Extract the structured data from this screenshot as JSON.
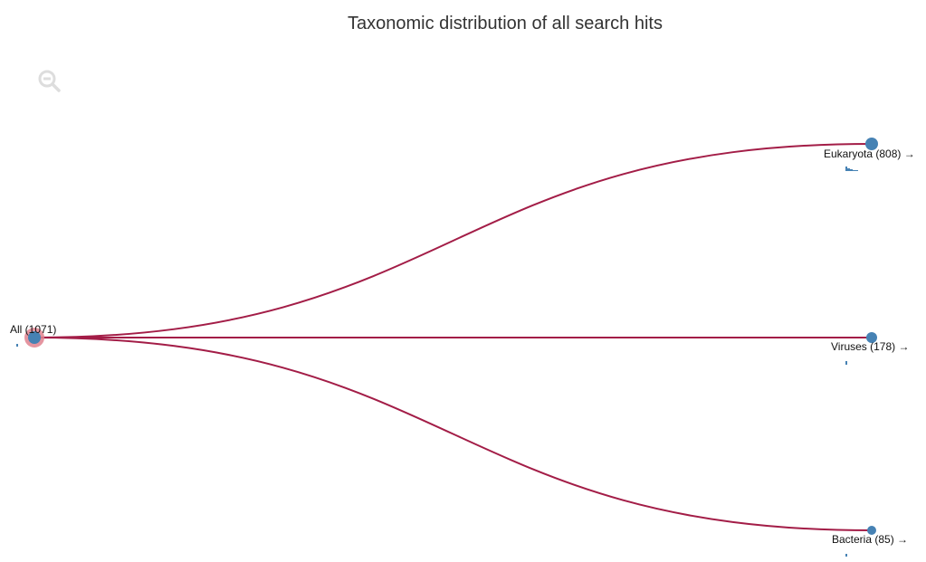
{
  "title": "Taxonomic distribution of all search hits",
  "toolbar": {
    "zoom_out_icon": "zoom-out-icon"
  },
  "colors": {
    "link": "#a31d47",
    "node": "#4682b4",
    "root_halo": "#e0828f",
    "histogram": "#4682b4",
    "zoom_icon": "#dddddd",
    "title": "#333333"
  },
  "tree": {
    "root": {
      "label": "All (1071)",
      "name": "All",
      "count": 1071
    },
    "children": [
      {
        "label": "Eukaryota (808) →",
        "name": "Eukaryota",
        "count": 808,
        "arrow": "→"
      },
      {
        "label": "Viruses (178) →",
        "name": "Viruses",
        "count": 178,
        "arrow": "→"
      },
      {
        "label": "Bacteria (85) →",
        "name": "Bacteria",
        "count": 85,
        "arrow": "→"
      }
    ]
  }
}
